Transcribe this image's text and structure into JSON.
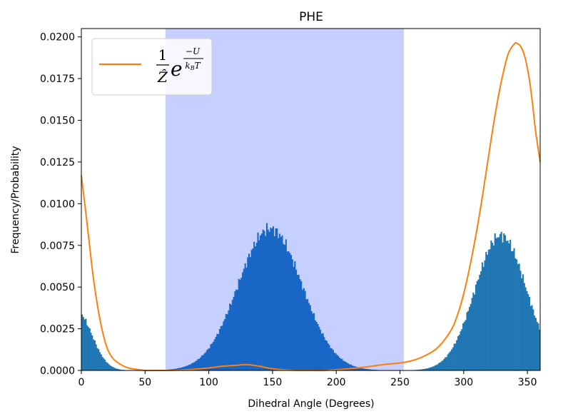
{
  "chart_data": {
    "type": "bar",
    "title": "PHE",
    "xlabel": "Dihedral Angle (Degrees)",
    "ylabel": "Frequency/Probability",
    "xlim": [
      0,
      360
    ],
    "ylim": [
      0,
      0.0205
    ],
    "xticks": [
      0,
      50,
      100,
      150,
      200,
      250,
      300,
      350
    ],
    "yticks": [
      0.0,
      0.0025,
      0.005,
      0.0075,
      0.01,
      0.0125,
      0.015,
      0.0175,
      0.02
    ],
    "xtick_labels": [
      "0",
      "50",
      "100",
      "150",
      "200",
      "250",
      "300",
      "350"
    ],
    "ytick_labels": [
      "0.0000",
      "0.0025",
      "0.0050",
      "0.0075",
      "0.0100",
      "0.0125",
      "0.0150",
      "0.0175",
      "0.0200"
    ],
    "grid": false,
    "legend": {
      "placement": "upper-left",
      "entries": [
        {
          "series": "boltzmann",
          "label_parts": {
            "frac_num": "1",
            "frac_den": "Ẑ",
            "base": "e",
            "exp_num": "−U",
            "exp_den": "k",
            "exp_den_sub": "B",
            "exp_den_tail": "T"
          }
        }
      ]
    },
    "highlight_region": {
      "x_start": 66,
      "x_end": 253,
      "color": "#c6d0fe"
    },
    "histogram": {
      "bin_width": 1,
      "color_outside": "#2077b4",
      "color_inside": "#1866c5",
      "peaks": [
        {
          "center": 148,
          "sigma": 25,
          "height": 0.0085
        },
        {
          "center": 329,
          "sigma": 20,
          "height": 0.0081
        },
        {
          "center": -4,
          "sigma": 12,
          "height": 0.0036
        }
      ]
    },
    "series": [
      {
        "id": "boltzmann",
        "type": "line",
        "color": "#ff7f0e",
        "x": [
          0,
          3,
          6,
          9,
          12,
          15,
          18,
          21,
          25,
          30,
          35,
          40,
          45,
          50,
          60,
          70,
          80,
          90,
          100,
          110,
          120,
          130,
          140,
          150,
          160,
          170,
          180,
          190,
          200,
          210,
          220,
          230,
          240,
          250,
          260,
          270,
          280,
          290,
          295,
          300,
          305,
          310,
          315,
          320,
          325,
          330,
          335,
          340,
          342,
          345,
          348,
          350,
          352,
          354,
          356,
          358,
          360
        ],
        "y": [
          0.0117,
          0.0098,
          0.0078,
          0.0058,
          0.0042,
          0.0029,
          0.0019,
          0.0012,
          0.0007,
          0.0004,
          0.0002,
          0.0001,
          5e-05,
          0.0,
          0.0,
          0.0,
          3e-05,
          8e-05,
          0.00015,
          0.00025,
          0.0003,
          0.00035,
          0.00025,
          0.0001,
          3e-05,
          0.0,
          0.0,
          0.0,
          5e-05,
          0.0001,
          0.00018,
          0.00028,
          0.00038,
          0.00045,
          0.0006,
          0.0009,
          0.0014,
          0.0024,
          0.0033,
          0.0046,
          0.0063,
          0.0083,
          0.0106,
          0.0131,
          0.0155,
          0.0175,
          0.019,
          0.0196,
          0.0196,
          0.0194,
          0.0188,
          0.0181,
          0.0172,
          0.016,
          0.0146,
          0.0135,
          0.0125
        ]
      }
    ]
  }
}
